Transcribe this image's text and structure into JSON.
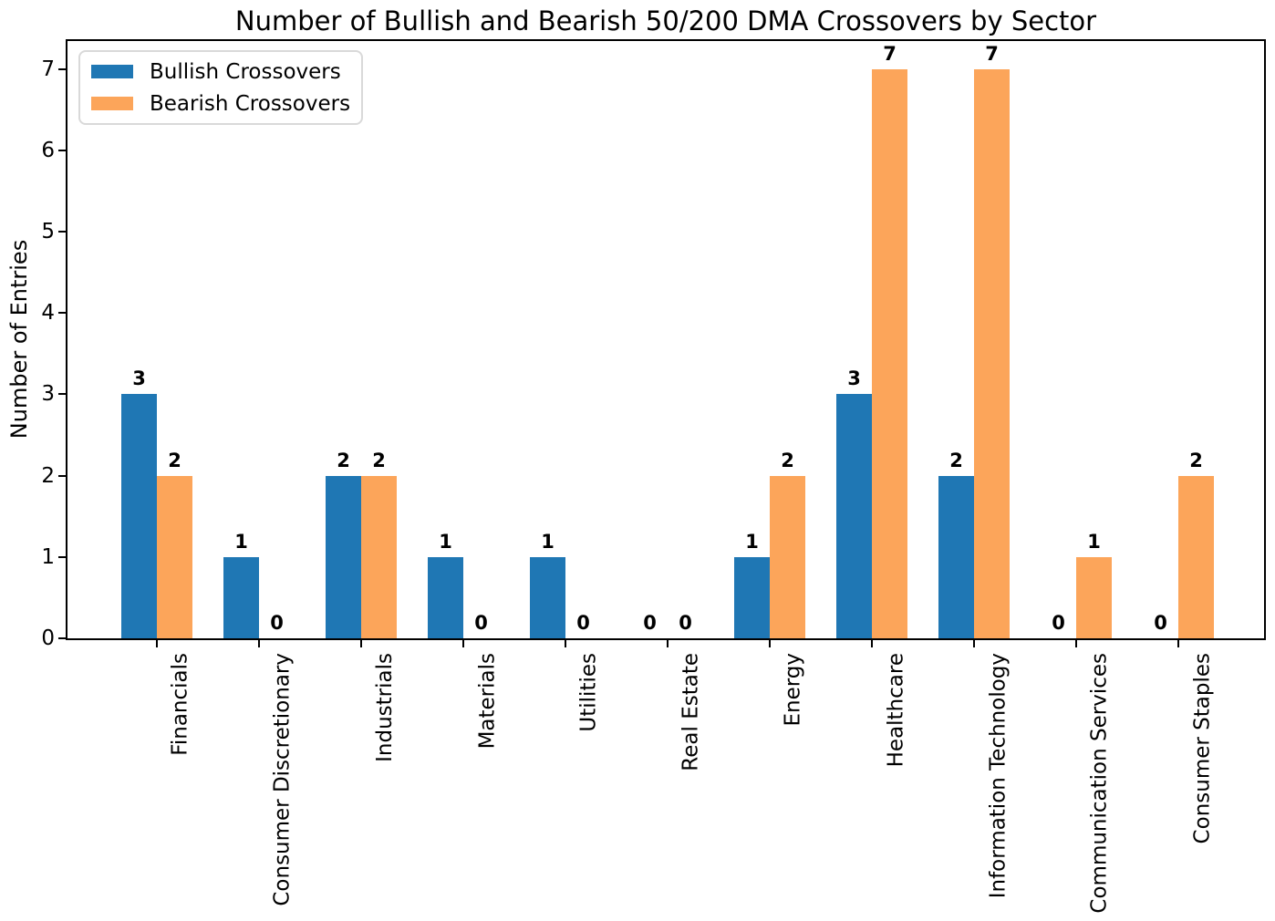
{
  "chart_data": {
    "type": "bar",
    "title": "Number of Bullish and Bearish 50/200 DMA Crossovers by Sector",
    "xlabel": "",
    "ylabel": "Number of Entries",
    "categories": [
      "Financials",
      "Consumer Discretionary",
      "Industrials",
      "Materials",
      "Utilities",
      "Real Estate",
      "Energy",
      "Healthcare",
      "Information Technology",
      "Communication Services",
      "Consumer Staples"
    ],
    "series": [
      {
        "name": "Bullish Crossovers",
        "color": "#1f77b4",
        "values": [
          3,
          1,
          2,
          1,
          1,
          0,
          1,
          3,
          2,
          0,
          0
        ]
      },
      {
        "name": "Bearish Crossovers",
        "color": "#fca55a",
        "values": [
          2,
          0,
          2,
          0,
          0,
          0,
          2,
          7,
          7,
          1,
          2
        ]
      }
    ],
    "yticks": [
      0,
      1,
      2,
      3,
      4,
      5,
      6,
      7
    ],
    "ylim": [
      0,
      7.37
    ],
    "bar_value_labels": true,
    "grid": false,
    "x_tick_rotation_deg": 90,
    "legend_position": "upper-left",
    "axis_color": "#000000",
    "background_color": "#ffffff"
  }
}
